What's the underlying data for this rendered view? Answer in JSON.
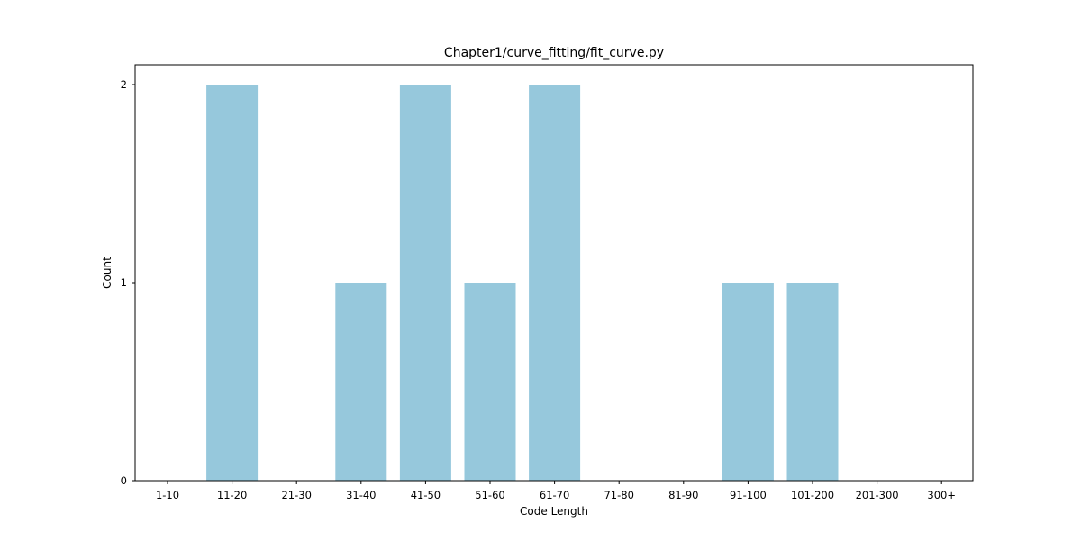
{
  "chart_data": {
    "type": "bar",
    "title": "Chapter1/curve_fitting/fit_curve.py",
    "xlabel": "Code Length",
    "ylabel": "Count",
    "categories": [
      "1-10",
      "11-20",
      "21-30",
      "31-40",
      "41-50",
      "51-60",
      "61-70",
      "71-80",
      "81-90",
      "91-100",
      "101-200",
      "201-300",
      "300+"
    ],
    "values": [
      0,
      2,
      0,
      1,
      2,
      1,
      2,
      0,
      0,
      1,
      1,
      0,
      0
    ],
    "ylim": [
      0,
      2.1
    ],
    "yticks": [
      0,
      1,
      2
    ],
    "bar_color": "#96c8dc",
    "grid": false,
    "legend": "none"
  }
}
